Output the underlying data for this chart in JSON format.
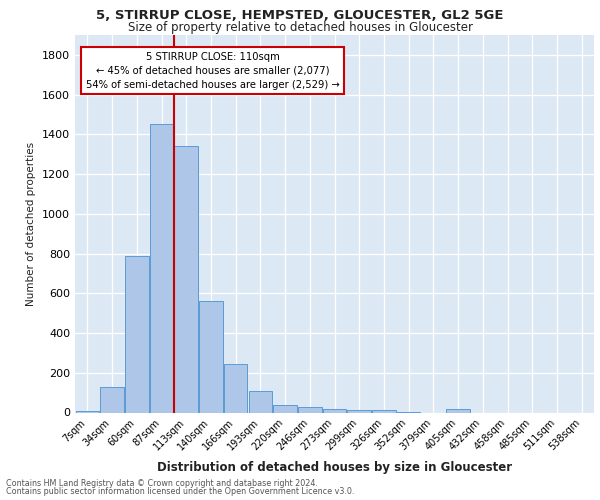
{
  "title_line1": "5, STIRRUP CLOSE, HEMPSTED, GLOUCESTER, GL2 5GE",
  "title_line2": "Size of property relative to detached houses in Gloucester",
  "xlabel": "Distribution of detached houses by size in Gloucester",
  "ylabel": "Number of detached properties",
  "bar_categories": [
    "7sqm",
    "34sqm",
    "60sqm",
    "87sqm",
    "113sqm",
    "140sqm",
    "166sqm",
    "193sqm",
    "220sqm",
    "246sqm",
    "273sqm",
    "299sqm",
    "326sqm",
    "352sqm",
    "379sqm",
    "405sqm",
    "432sqm",
    "458sqm",
    "485sqm",
    "511sqm",
    "538sqm"
  ],
  "bar_values": [
    10,
    130,
    790,
    1450,
    1340,
    560,
    245,
    110,
    40,
    30,
    20,
    15,
    15,
    5,
    0,
    20,
    0,
    0,
    0,
    0,
    0
  ],
  "bar_color": "#aec6e8",
  "bar_edgecolor": "#5b9bd5",
  "background_color": "#dce9f5",
  "grid_color": "#ffffff",
  "vline_color": "#cc0000",
  "vline_x_idx": 4,
  "annotation_line1": "5 STIRRUP CLOSE: 110sqm",
  "annotation_line2": "← 45% of detached houses are smaller (2,077)",
  "annotation_line3": "54% of semi-detached houses are larger (2,529) →",
  "annotation_box_color": "#ffffff",
  "annotation_box_edgecolor": "#cc0000",
  "ylim": [
    0,
    1900
  ],
  "yticks": [
    0,
    200,
    400,
    600,
    800,
    1000,
    1200,
    1400,
    1600,
    1800
  ],
  "footer_line1": "Contains HM Land Registry data © Crown copyright and database right 2024.",
  "footer_line2": "Contains public sector information licensed under the Open Government Licence v3.0."
}
